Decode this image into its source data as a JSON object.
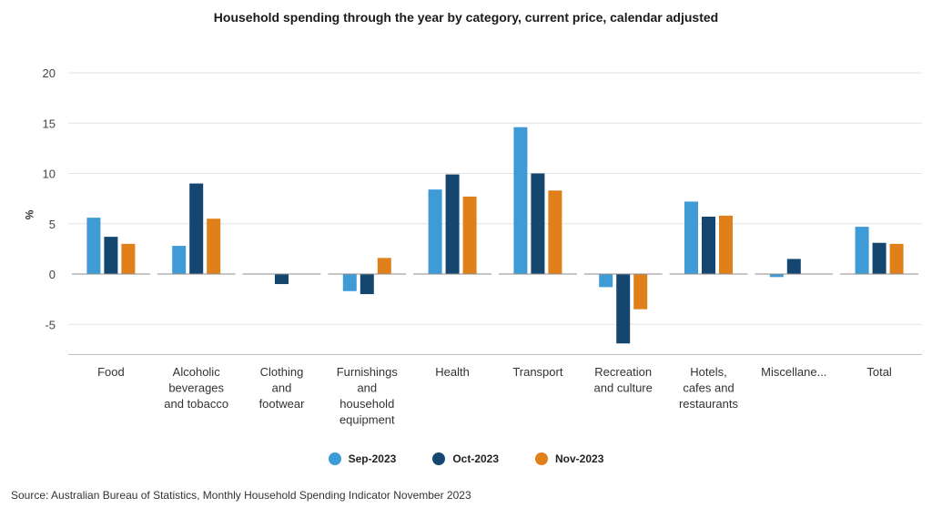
{
  "chart_data": {
    "type": "bar",
    "title": "Household spending through the year by category, current price, calendar adjusted",
    "xlabel": "",
    "ylabel": "%",
    "ylim": [
      -8,
      20
    ],
    "yticks": [
      -5,
      0,
      5,
      10,
      15,
      20
    ],
    "grid": true,
    "legend_position": "bottom",
    "categories": [
      [
        "Food"
      ],
      [
        "Alcoholic",
        "beverages",
        "and tobacco"
      ],
      [
        "Clothing",
        "and",
        "footwear"
      ],
      [
        "Furnishings",
        "and",
        "household",
        "equipment"
      ],
      [
        "Health"
      ],
      [
        "Transport"
      ],
      [
        "Recreation",
        "and culture"
      ],
      [
        "Hotels,",
        "cafes and",
        "restaurants"
      ],
      [
        "Miscellane..."
      ],
      [
        "Total"
      ]
    ],
    "series": [
      {
        "name": "Sep-2023",
        "color": "#3f9bd6",
        "values": [
          5.6,
          2.8,
          0.0,
          -1.7,
          8.4,
          14.6,
          -1.3,
          7.2,
          -0.3,
          4.7
        ]
      },
      {
        "name": "Oct-2023",
        "color": "#14466f",
        "values": [
          3.7,
          9.0,
          -1.0,
          -2.0,
          9.9,
          10.0,
          -6.9,
          5.7,
          1.5,
          3.1
        ]
      },
      {
        "name": "Nov-2023",
        "color": "#e0801b",
        "values": [
          3.0,
          5.5,
          0.0,
          1.6,
          7.7,
          8.3,
          -3.5,
          5.8,
          0.0,
          3.0
        ]
      }
    ]
  },
  "source": "Source: Australian Bureau of Statistics, Monthly Household Spending Indicator November 2023"
}
